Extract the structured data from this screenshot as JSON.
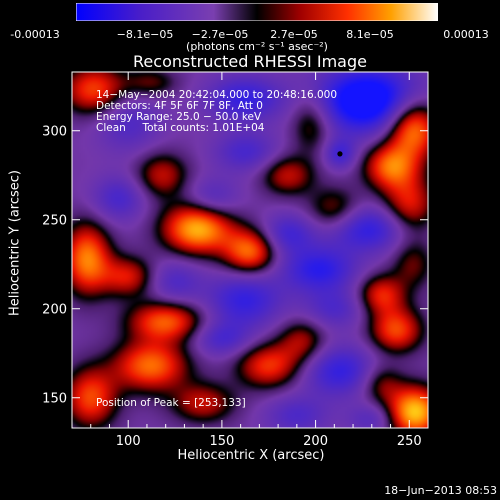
{
  "chart_data": {
    "type": "heatmap",
    "title": "Reconstructed RHESSI Image",
    "xlabel": "Heliocentric X (arcsec)",
    "ylabel": "Heliocentric Y (arcsec)",
    "xlim": [
      70,
      260
    ],
    "ylim": [
      133,
      333
    ],
    "xticks": [
      100,
      150,
      200,
      250
    ],
    "yticks": [
      150,
      200,
      250,
      300
    ],
    "colorbar": {
      "range": [
        -0.00013,
        0.00013
      ],
      "tick_values": [
        -0.00013,
        -8.1e-05,
        -2.7e-05,
        2.7e-05,
        8.1e-05,
        0.00013
      ],
      "tick_labels": [
        "-0.00013",
        "−8.1e−05",
        "−2.7e−05",
        "2.7e−05",
        "8.1e−05",
        "0.00013"
      ],
      "units": "(photons cm⁻² s⁻¹ asec⁻²)"
    },
    "annotations": {
      "time_range": "14−May−2004 20:42:04.000 to 20:48:16.000",
      "detectors": "Detectors: 4F 5F 6F 7F 8F, Att 0",
      "energy": "Energy Range: 25.0 − 50.0 keV",
      "counts": "Clean     Total counts: 1.01E+04",
      "peak": "Position of Peak = [253,133]"
    },
    "marker": {
      "x": 213,
      "y": 287
    },
    "peak_position": [
      253,
      133
    ],
    "blobs": [
      {
        "x": 228,
        "y": 317,
        "v": -1.0,
        "sx": 20,
        "sy": 13
      },
      {
        "x": 213,
        "y": 287,
        "v": -0.45,
        "sx": 6,
        "sy": 6
      },
      {
        "x": 162,
        "y": 318,
        "v": -0.55,
        "sx": 14,
        "sy": 9
      },
      {
        "x": 100,
        "y": 305,
        "v": -0.35,
        "sx": 12,
        "sy": 12
      },
      {
        "x": 82,
        "y": 323,
        "v": 0.7,
        "sx": 12,
        "sy": 10
      },
      {
        "x": 112,
        "y": 327,
        "v": 0.35,
        "sx": 10,
        "sy": 6
      },
      {
        "x": 198,
        "y": 305,
        "v": 0.45,
        "sx": 8,
        "sy": 12
      },
      {
        "x": 252,
        "y": 302,
        "v": 0.95,
        "sx": 10,
        "sy": 12
      },
      {
        "x": 240,
        "y": 280,
        "v": 0.75,
        "sx": 10,
        "sy": 9
      },
      {
        "x": 185,
        "y": 275,
        "v": 0.5,
        "sx": 10,
        "sy": 8
      },
      {
        "x": 118,
        "y": 275,
        "v": 0.5,
        "sx": 10,
        "sy": 9
      },
      {
        "x": 163,
        "y": 288,
        "v": -0.4,
        "sx": 12,
        "sy": 8
      },
      {
        "x": 95,
        "y": 262,
        "v": -0.4,
        "sx": 10,
        "sy": 9
      },
      {
        "x": 145,
        "y": 262,
        "v": -0.35,
        "sx": 10,
        "sy": 8
      },
      {
        "x": 137,
        "y": 245,
        "v": 1.0,
        "sx": 13,
        "sy": 10
      },
      {
        "x": 165,
        "y": 232,
        "v": 0.8,
        "sx": 10,
        "sy": 9
      },
      {
        "x": 78,
        "y": 228,
        "v": 0.85,
        "sx": 9,
        "sy": 14
      },
      {
        "x": 100,
        "y": 218,
        "v": 0.55,
        "sx": 10,
        "sy": 8
      },
      {
        "x": 210,
        "y": 255,
        "v": 0.45,
        "sx": 10,
        "sy": 9
      },
      {
        "x": 250,
        "y": 258,
        "v": 0.6,
        "sx": 10,
        "sy": 12
      },
      {
        "x": 228,
        "y": 245,
        "v": -0.6,
        "sx": 16,
        "sy": 9
      },
      {
        "x": 185,
        "y": 242,
        "v": -0.45,
        "sx": 10,
        "sy": 8
      },
      {
        "x": 202,
        "y": 222,
        "v": -0.6,
        "sx": 14,
        "sy": 9
      },
      {
        "x": 162,
        "y": 205,
        "v": -0.55,
        "sx": 14,
        "sy": 11
      },
      {
        "x": 125,
        "y": 215,
        "v": -0.35,
        "sx": 10,
        "sy": 9
      },
      {
        "x": 120,
        "y": 193,
        "v": 0.75,
        "sx": 14,
        "sy": 8
      },
      {
        "x": 235,
        "y": 208,
        "v": 0.6,
        "sx": 9,
        "sy": 8
      },
      {
        "x": 252,
        "y": 225,
        "v": 0.35,
        "sx": 8,
        "sy": 10
      },
      {
        "x": 210,
        "y": 200,
        "v": -0.35,
        "sx": 12,
        "sy": 8
      },
      {
        "x": 243,
        "y": 188,
        "v": 0.7,
        "sx": 10,
        "sy": 9
      },
      {
        "x": 193,
        "y": 182,
        "v": 0.45,
        "sx": 9,
        "sy": 9
      },
      {
        "x": 175,
        "y": 168,
        "v": 0.65,
        "sx": 12,
        "sy": 9
      },
      {
        "x": 112,
        "y": 168,
        "v": 0.8,
        "sx": 14,
        "sy": 10
      },
      {
        "x": 80,
        "y": 150,
        "v": 0.7,
        "sx": 10,
        "sy": 12
      },
      {
        "x": 140,
        "y": 147,
        "v": 0.5,
        "sx": 12,
        "sy": 8
      },
      {
        "x": 213,
        "y": 165,
        "v": -0.55,
        "sx": 14,
        "sy": 10
      },
      {
        "x": 150,
        "y": 183,
        "v": -0.4,
        "sx": 11,
        "sy": 7
      },
      {
        "x": 235,
        "y": 158,
        "v": 0.4,
        "sx": 8,
        "sy": 8
      },
      {
        "x": 253,
        "y": 142,
        "v": 1.05,
        "sx": 10,
        "sy": 10
      },
      {
        "x": 190,
        "y": 140,
        "v": -0.35,
        "sx": 12,
        "sy": 8
      },
      {
        "x": 230,
        "y": 138,
        "v": -0.3,
        "sx": 9,
        "sy": 6
      }
    ]
  },
  "footer": {
    "timestamp": "18−Jun−2013 08:53"
  }
}
